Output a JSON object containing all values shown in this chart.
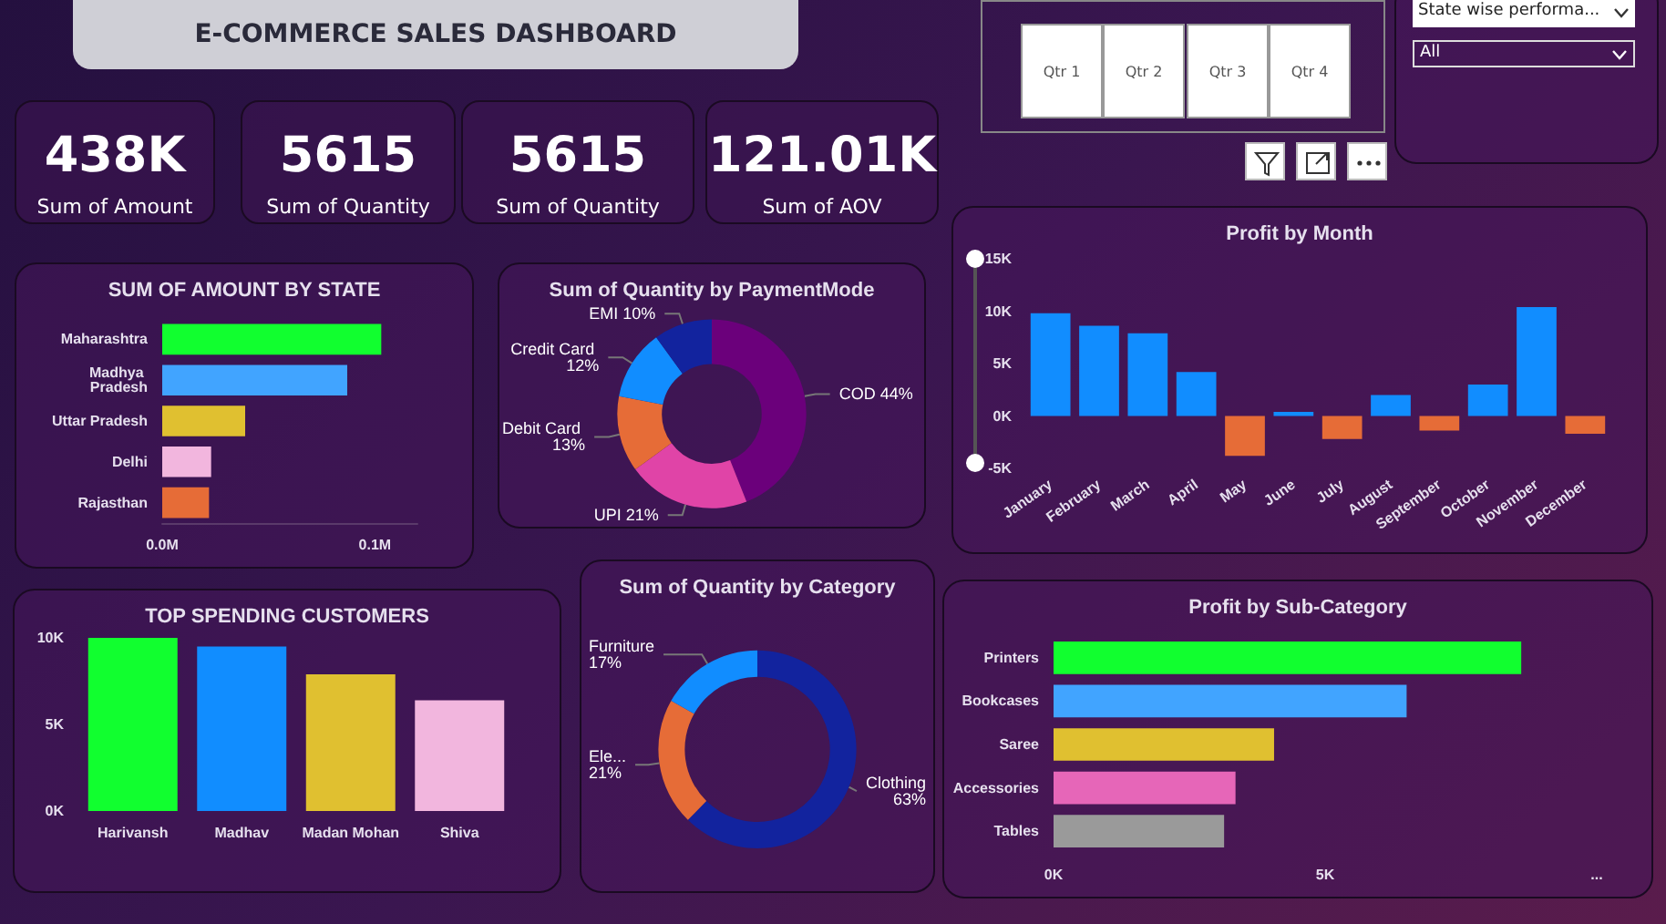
{
  "chart_data": [
    {
      "type": "other",
      "title": "E-COMMERCE SALES DASHBOARD",
      "annotations": [
        "438K",
        "Sum of Amount",
        "5615",
        "Sum of Quantity",
        "5615",
        "Sum of Quantity",
        "121.01K",
        "Sum of AOV"
      ]
    },
    {
      "type": "other",
      "annotations": [
        "Qtr 1",
        "Qtr 2",
        "Qtr 3",
        "Qtr 4",
        "State wise performa...",
        "All"
      ]
    },
    {
      "type": "bar",
      "title": "SUM OF AMOUNT BY STATE",
      "orientation": "horizontal",
      "categories": [
        "Maharashtra",
        "Madhya Pradesh",
        "Uttar Pradesh",
        "Delhi",
        "Rajasthan"
      ],
      "values": [
        0.103,
        0.087,
        0.039,
        0.023,
        0.022
      ],
      "colors": [
        "#11ff2f",
        "#41a4ff",
        "#e0c030",
        "#f2b6de",
        "#e66c37"
      ],
      "xlim": [
        0,
        0.12
      ],
      "xticks": [
        {
          "value": 0,
          "label": "0.0M"
        },
        {
          "value": 0.1,
          "label": "0.1M"
        }
      ]
    },
    {
      "type": "donut",
      "title": "Sum of Quantity by PaymentMode",
      "categories": [
        "COD",
        "UPI",
        "Debit Card",
        "Credit Card",
        "EMI"
      ],
      "values": [
        44,
        21,
        13,
        12,
        10
      ],
      "value_labels": [
        "44%",
        "21%",
        "13%",
        "12%",
        "10%"
      ],
      "colors": [
        "#6b007b",
        "#e044a7",
        "#e66c37",
        "#118dff",
        "#12239e"
      ]
    },
    {
      "type": "bar",
      "title": "Profit by Month",
      "categories": [
        "January",
        "February",
        "March",
        "April",
        "May",
        "June",
        "July",
        "August",
        "September",
        "October",
        "November",
        "December"
      ],
      "values": [
        9800,
        8600,
        7900,
        4200,
        -3800,
        400,
        -2200,
        2000,
        -1400,
        3000,
        10400,
        -1700
      ],
      "colors": [
        "#118dff",
        "#118dff",
        "#118dff",
        "#118dff",
        "#e66c37",
        "#118dff",
        "#e66c37",
        "#118dff",
        "#e66c37",
        "#118dff",
        "#118dff",
        "#e66c37"
      ],
      "ylim": [
        -5000,
        15000
      ],
      "yticks": [
        {
          "value": -5000,
          "label": "-5K"
        },
        {
          "value": 0,
          "label": "0K"
        },
        {
          "value": 5000,
          "label": "5K"
        },
        {
          "value": 10000,
          "label": "10K"
        },
        {
          "value": 15000,
          "label": "15K"
        }
      ]
    },
    {
      "type": "bar",
      "title": "TOP SPENDING CUSTOMERS",
      "categories": [
        "Harivansh",
        "Madhav",
        "Madan Mohan",
        "Shiva"
      ],
      "values": [
        10000,
        9500,
        7900,
        6400
      ],
      "colors": [
        "#11ff2f",
        "#118dff",
        "#e0c030",
        "#f2b6de"
      ],
      "ylim": [
        0,
        10000
      ],
      "yticks": [
        {
          "value": 0,
          "label": "0K"
        },
        {
          "value": 5000,
          "label": "5K"
        },
        {
          "value": 10000,
          "label": "10K"
        }
      ]
    },
    {
      "type": "donut",
      "title": "Sum of Quantity by Category",
      "categories": [
        "Clothing",
        "Ele...",
        "Furniture"
      ],
      "values": [
        63,
        21,
        17
      ],
      "value_labels": [
        "63%",
        "21%",
        "17%"
      ],
      "colors": [
        "#12239e",
        "#e66c37",
        "#118dff"
      ]
    },
    {
      "type": "bar",
      "title": "Profit by Sub-Category",
      "orientation": "horizontal",
      "categories": [
        "Printers",
        "Bookcases",
        "Saree",
        "Accessories",
        "Tables"
      ],
      "values": [
        8610,
        6500,
        4060,
        3350,
        3140
      ],
      "colors": [
        "#11ff2f",
        "#41a4ff",
        "#e0c030",
        "#e666b8",
        "#9a9a9a"
      ],
      "xlim": [
        0,
        10000
      ],
      "xticks": [
        {
          "value": 0,
          "label": "0K"
        },
        {
          "value": 5000,
          "label": "5K"
        },
        {
          "value": 10000,
          "label": "..."
        }
      ]
    }
  ]
}
